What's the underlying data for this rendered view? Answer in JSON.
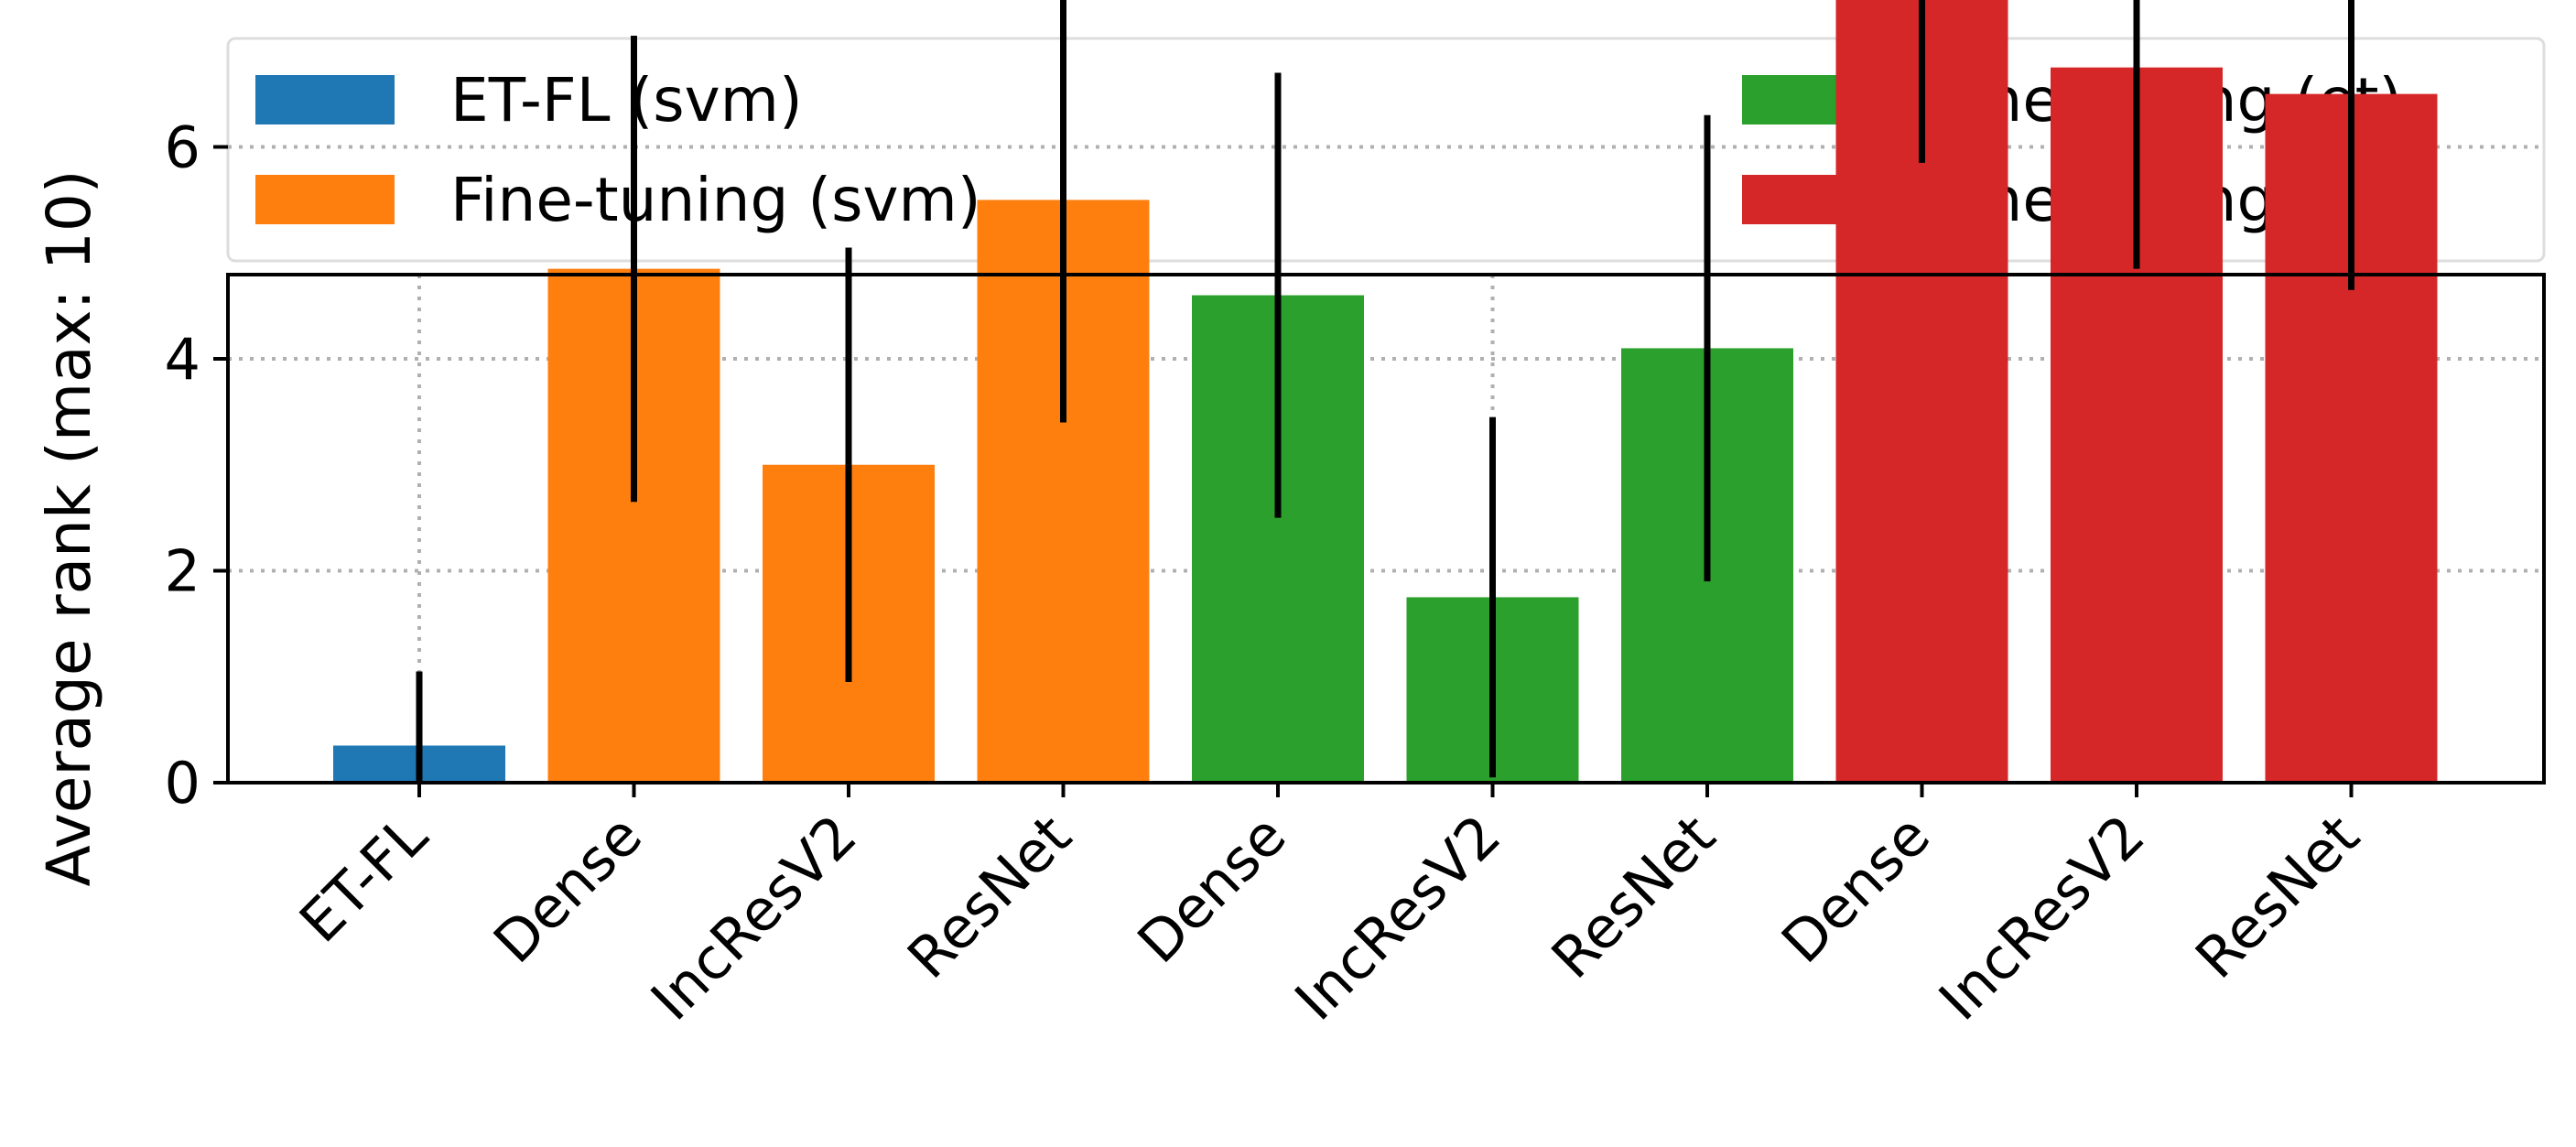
{
  "chart_data": {
    "type": "bar",
    "title": "",
    "xlabel": "",
    "ylabel": "Average rank (max: 10)",
    "ylim": [
      0,
      9.6
    ],
    "yticks": [
      0,
      2,
      4,
      6,
      8
    ],
    "grid": true,
    "legend_position": "top",
    "categories": [
      "ET-FL",
      "Dense",
      "IncResV2",
      "ResNet",
      "Dense",
      "IncResV2",
      "ResNet",
      "Dense",
      "IncResV2",
      "ResNet"
    ],
    "values": [
      0.35,
      4.85,
      3.0,
      5.5,
      4.6,
      1.75,
      4.1,
      7.5,
      6.75,
      6.5
    ],
    "errors": [
      0.7,
      2.2,
      2.05,
      2.1,
      2.1,
      1.7,
      2.2,
      1.65,
      1.9,
      1.85
    ],
    "group_of_bar": [
      0,
      1,
      1,
      1,
      2,
      2,
      2,
      3,
      3,
      3
    ],
    "series": [
      {
        "name": "ET-FL (svm)",
        "color": "#1f77b4"
      },
      {
        "name": "Fine-tuning (svm)",
        "color": "#ff7f0e"
      },
      {
        "name": "Fine-tuning (et)",
        "color": "#2ca02c"
      },
      {
        "name": "Fine-tuning (net)",
        "color": "#d62728"
      }
    ]
  }
}
